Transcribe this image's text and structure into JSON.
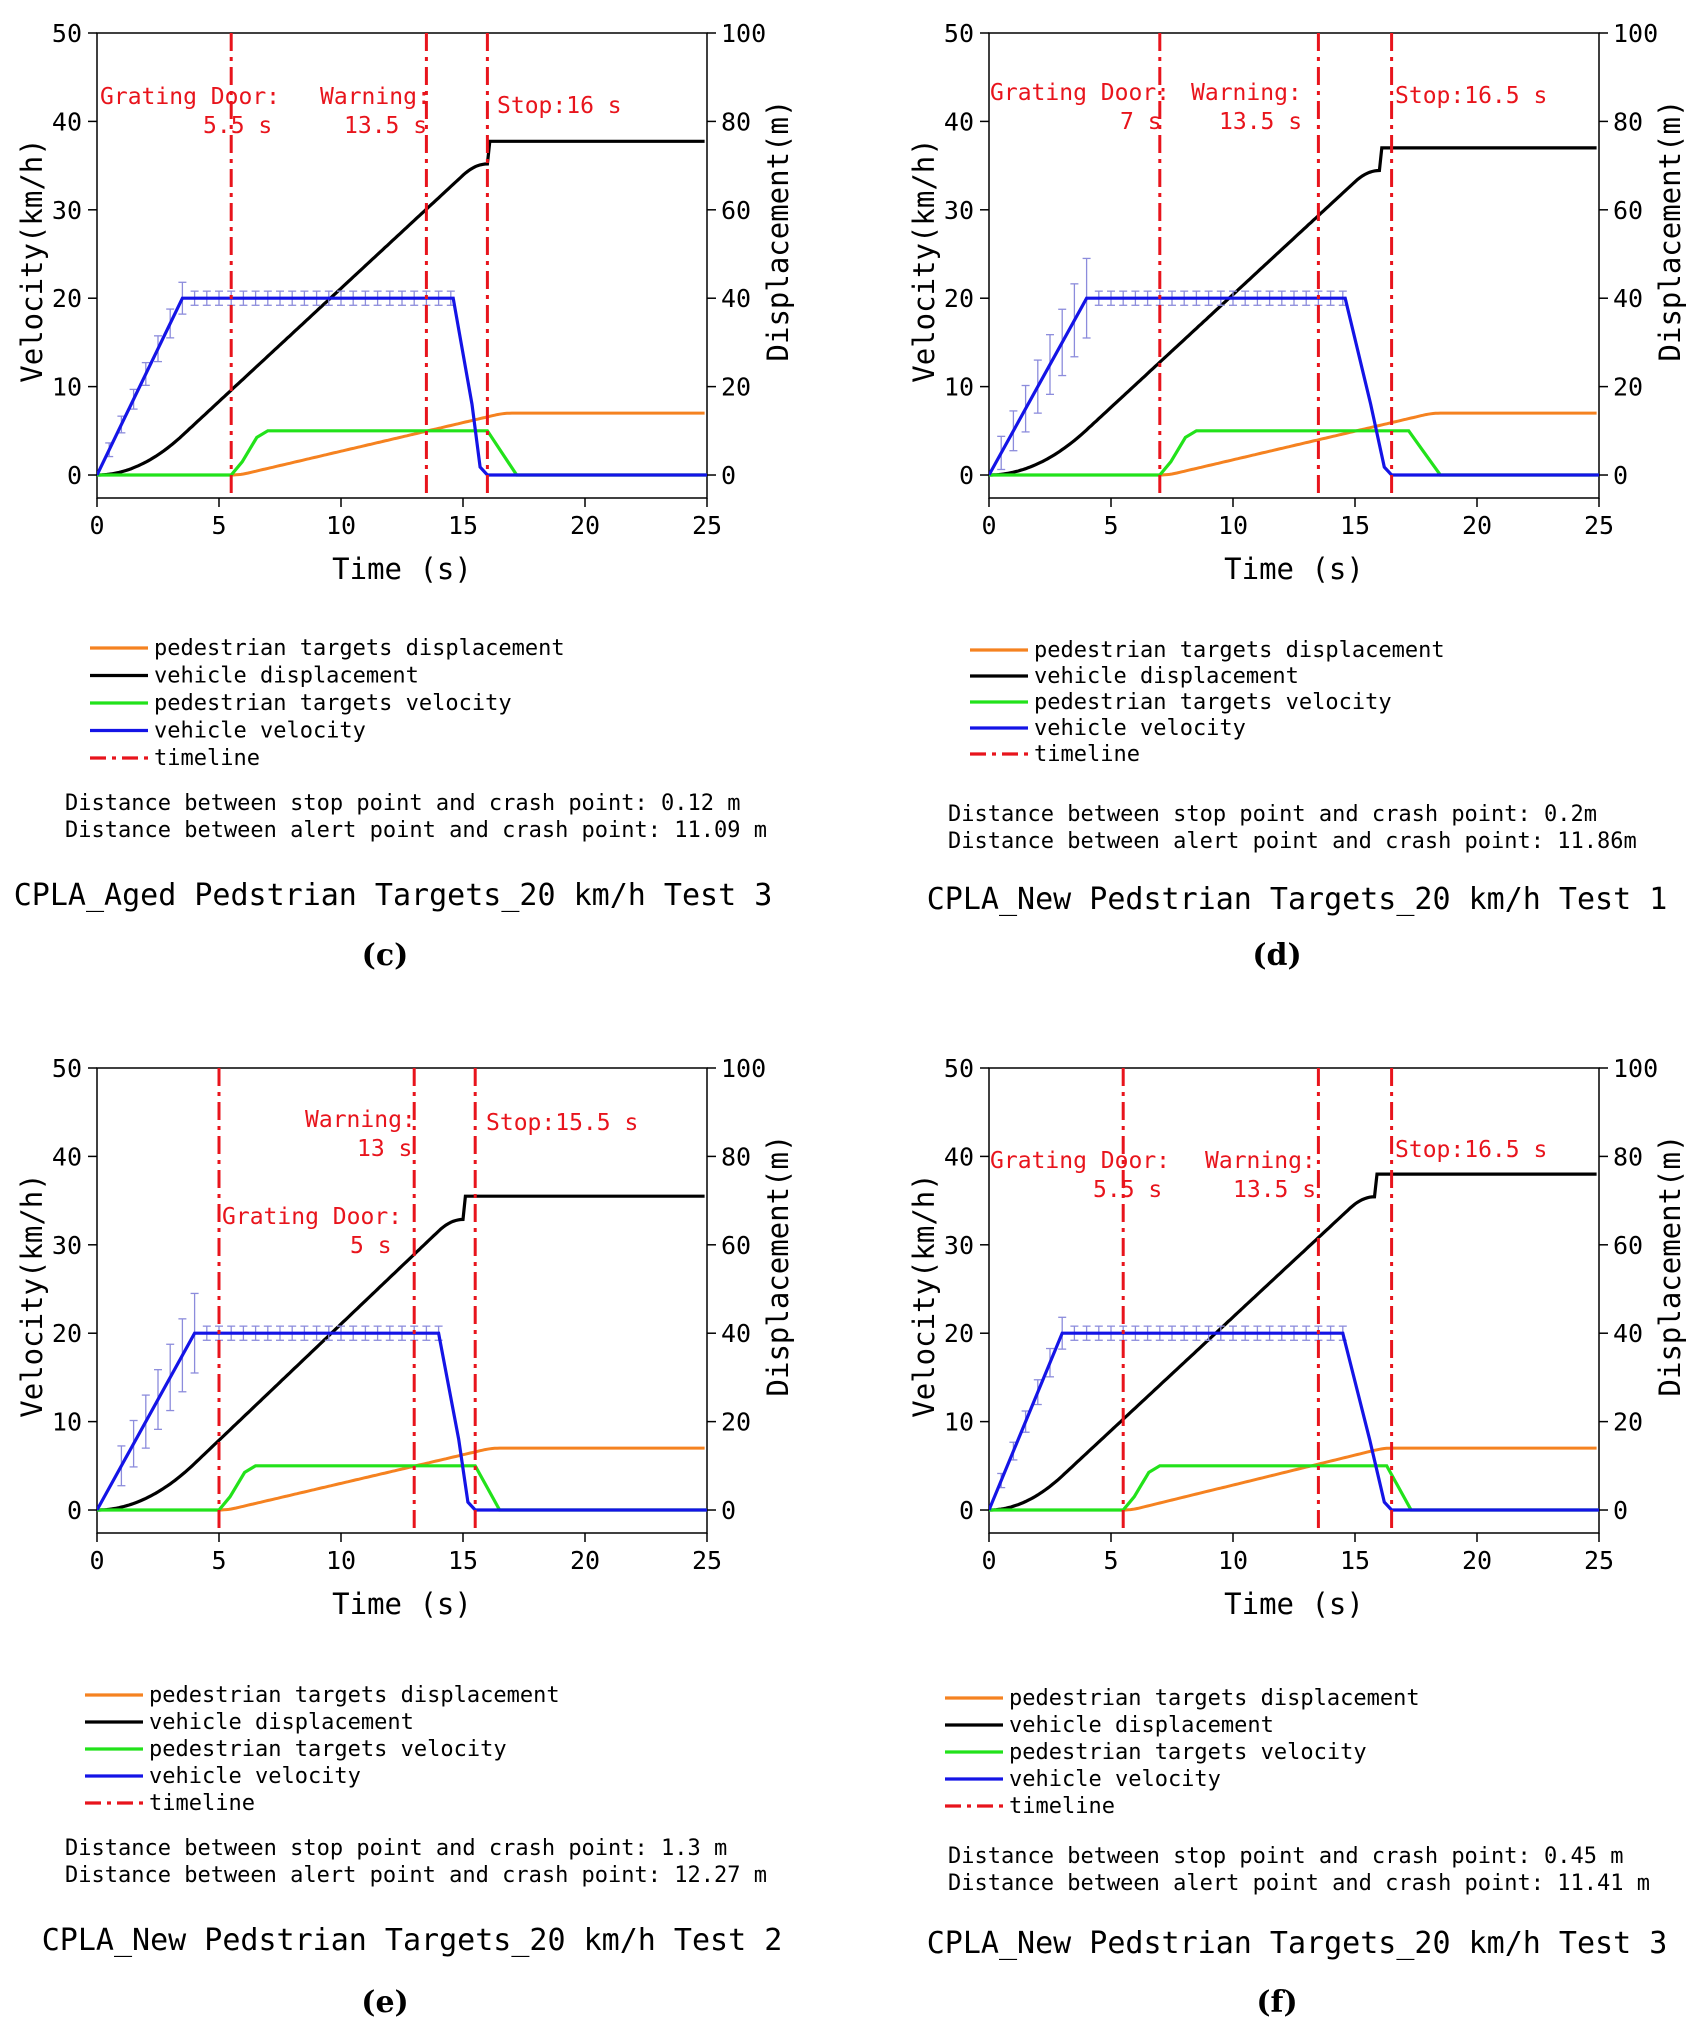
{
  "colors": {
    "pedestrian_displacement": "#f58220",
    "vehicle_displacement": "#000000",
    "pedestrian_velocity": "#22e21a",
    "vehicle_velocity": "#1414e6",
    "timeline": "#e8141c",
    "error_bars": "#8c8cdc"
  },
  "legend": [
    {
      "label": "pedestrian targets displacement",
      "series": "pedestrian_displacement",
      "style": "solid"
    },
    {
      "label": "vehicle displacement",
      "series": "vehicle_displacement",
      "style": "solid"
    },
    {
      "label": "pedestrian targets velocity",
      "series": "pedestrian_velocity",
      "style": "solid"
    },
    {
      "label": "vehicle velocity",
      "series": "vehicle_velocity",
      "style": "solid"
    },
    {
      "label": "timeline",
      "series": "timeline",
      "style": "dashdot"
    }
  ],
  "chart_data": [
    {
      "panel": "(c)",
      "type": "line",
      "title": "CPLA_Aged Pedstrian Targets_20 km/h Test 3",
      "xlabel": "Time (s)",
      "ylabel_left": "Velocity(km/h)",
      "ylabel_right": "Displacement(m)",
      "xlim": [
        0,
        25
      ],
      "ylim_left": [
        0,
        50
      ],
      "ylim_right": [
        0,
        100
      ],
      "xticks": [
        0,
        5,
        10,
        15,
        20,
        25
      ],
      "yticks_left": [
        0,
        10,
        20,
        30,
        40,
        50
      ],
      "yticks_right": [
        0,
        20,
        40,
        60,
        80,
        100
      ],
      "timelines": [
        {
          "t": 5.5,
          "label": [
            "Grating Door:",
            "5.5 s"
          ]
        },
        {
          "t": 13.5,
          "label": [
            "Warning:",
            "13.5 s"
          ]
        },
        {
          "t": 16,
          "label": [
            "Stop:16 s"
          ]
        }
      ],
      "vehicle_velocity": {
        "t_accel_end": 3.5,
        "v_max": 20,
        "t_decel_start": 14.6,
        "t_stop": 16
      },
      "vehicle_displacement": {
        "t_knee": 3.5,
        "t_plateau": 16,
        "d_final": 75.5
      },
      "pedestrian_velocity": {
        "t_start": 5.5,
        "t_reach": 7.0,
        "v": 5,
        "t_decay_start": 16.0,
        "t_end": 17.2
      },
      "pedestrian_displacement": {
        "t_start": 5.5,
        "t_end": 17.0,
        "d_final": 14
      },
      "error_bars": {
        "t_start": 0.5,
        "t_end": 3.5,
        "spread_ramp": 1.2,
        "spread_plateau": 0.8
      },
      "notes": [
        "Distance between stop point and crash point: 0.12 m",
        "Distance between alert point and crash point: 11.09 m"
      ]
    },
    {
      "panel": "(d)",
      "type": "line",
      "title": "CPLA_New Pedstrian Targets_20 km/h Test 1",
      "xlabel": "Time (s)",
      "ylabel_left": "Velocity(km/h)",
      "ylabel_right": "Displacement(m)",
      "xlim": [
        0,
        25
      ],
      "ylim_left": [
        0,
        50
      ],
      "ylim_right": [
        0,
        100
      ],
      "xticks": [
        0,
        5,
        10,
        15,
        20,
        25
      ],
      "yticks_left": [
        0,
        10,
        20,
        30,
        40,
        50
      ],
      "yticks_right": [
        0,
        20,
        40,
        60,
        80,
        100
      ],
      "timelines": [
        {
          "t": 7,
          "label": [
            "Grating Door:",
            "7 s"
          ]
        },
        {
          "t": 13.5,
          "label": [
            "Warning:",
            "13.5 s"
          ]
        },
        {
          "t": 16.5,
          "label": [
            "Stop:16.5 s"
          ]
        }
      ],
      "vehicle_velocity": {
        "t_accel_end": 4,
        "v_max": 20,
        "t_decel_start": 14.6,
        "t_stop": 16.5
      },
      "vehicle_displacement": {
        "t_knee": 4,
        "t_plateau": 16,
        "d_final": 74
      },
      "pedestrian_velocity": {
        "t_start": 7.0,
        "t_reach": 8.5,
        "v": 5,
        "t_decay_start": 17.2,
        "t_end": 18.5
      },
      "pedestrian_displacement": {
        "t_start": 7.0,
        "t_end": 18.5,
        "d_final": 14
      },
      "error_bars": {
        "t_start": 0.5,
        "t_end": 4.0,
        "spread_ramp": 3.0,
        "spread_plateau": 0.8
      },
      "notes": [
        "Distance between stop point and crash point: 0.2m",
        "Distance between alert point and crash point: 11.86m"
      ]
    },
    {
      "panel": "(e)",
      "type": "line",
      "title": "CPLA_New Pedstrian Targets_20 km/h Test 2",
      "xlabel": "Time (s)",
      "ylabel_left": "Velocity(km/h)",
      "ylabel_right": "Displacement(m)",
      "xlim": [
        0,
        25
      ],
      "ylim_left": [
        0,
        50
      ],
      "ylim_right": [
        0,
        100
      ],
      "xticks": [
        0,
        5,
        10,
        15,
        20,
        25
      ],
      "yticks_left": [
        0,
        10,
        20,
        30,
        40,
        50
      ],
      "yticks_right": [
        0,
        20,
        40,
        60,
        80,
        100
      ],
      "timelines": [
        {
          "t": 5,
          "label": [
            "Grating Door:",
            "5 s"
          ]
        },
        {
          "t": 13,
          "label": [
            "Warning:",
            "13 s"
          ]
        },
        {
          "t": 15.5,
          "label": [
            "Stop:15.5 s"
          ]
        }
      ],
      "vehicle_velocity": {
        "t_accel_end": 4,
        "v_max": 20,
        "t_decel_start": 14.0,
        "t_stop": 15.5
      },
      "vehicle_displacement": {
        "t_knee": 4,
        "t_plateau": 15,
        "d_final": 71
      },
      "pedestrian_velocity": {
        "t_start": 5.0,
        "t_reach": 6.5,
        "v": 5,
        "t_decay_start": 15.5,
        "t_end": 16.5
      },
      "pedestrian_displacement": {
        "t_start": 5.0,
        "t_end": 16.5,
        "d_final": 14
      },
      "error_bars": {
        "t_start": 1.0,
        "t_end": 4.0,
        "spread_ramp": 3.0,
        "spread_plateau": 0.8
      },
      "notes": [
        "Distance between stop point and crash point: 1.3 m",
        "Distance between alert point and crash point: 12.27 m"
      ]
    },
    {
      "panel": "(f)",
      "type": "line",
      "title": "CPLA_New Pedstrian Targets_20 km/h Test 3",
      "xlabel": "Time (s)",
      "ylabel_left": "Velocity(km/h)",
      "ylabel_right": "Displacement(m)",
      "xlim": [
        0,
        25
      ],
      "ylim_left": [
        0,
        50
      ],
      "ylim_right": [
        0,
        100
      ],
      "xticks": [
        0,
        5,
        10,
        15,
        20,
        25
      ],
      "yticks_left": [
        0,
        10,
        20,
        30,
        40,
        50
      ],
      "yticks_right": [
        0,
        20,
        40,
        60,
        80,
        100
      ],
      "timelines": [
        {
          "t": 5.5,
          "label": [
            "Grating Door:",
            "5.5 s"
          ]
        },
        {
          "t": 13.5,
          "label": [
            "Warning:",
            "13.5 s"
          ]
        },
        {
          "t": 16.5,
          "label": [
            "Stop:16.5 s"
          ]
        }
      ],
      "vehicle_velocity": {
        "t_accel_end": 3,
        "v_max": 20,
        "t_decel_start": 14.5,
        "t_stop": 16.5
      },
      "vehicle_displacement": {
        "t_knee": 3,
        "t_plateau": 15.8,
        "d_final": 76
      },
      "pedestrian_velocity": {
        "t_start": 5.5,
        "t_reach": 7.0,
        "v": 5,
        "t_decay_start": 16.3,
        "t_end": 17.3
      },
      "pedestrian_displacement": {
        "t_start": 5.5,
        "t_end": 16.5,
        "d_final": 14
      },
      "error_bars": {
        "t_start": 0.5,
        "t_end": 3.0,
        "spread_ramp": 1.2,
        "spread_plateau": 0.8
      },
      "notes": [
        "Distance between stop point and crash point: 0.45 m",
        "Distance between alert point and crash point: 11.41 m"
      ]
    }
  ]
}
